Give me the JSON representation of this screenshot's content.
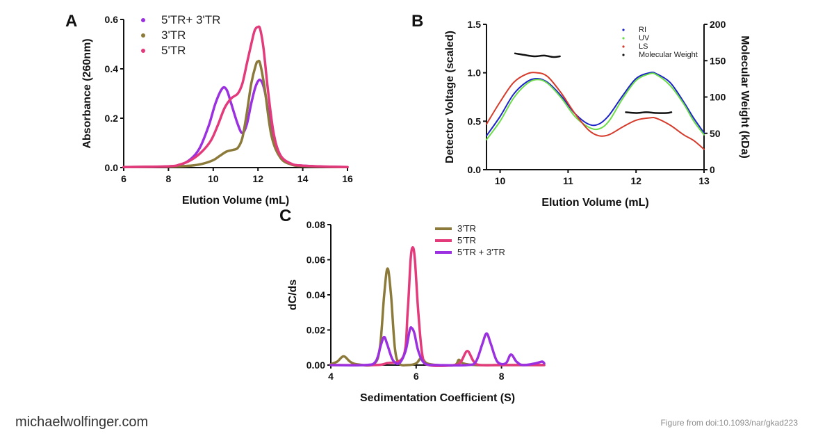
{
  "footer": {
    "site": "michaelwolfinger.com",
    "credit": "Figure from doi:10.1093/nar/gkad223"
  },
  "chart_data": [
    {
      "panel": "A",
      "type": "line",
      "xlabel": "Elution Volume (mL)",
      "ylabel": "Absorbance (260nm)",
      "xlim": [
        6,
        16
      ],
      "ylim": [
        0,
        0.6
      ],
      "xticks": [
        6,
        8,
        10,
        12,
        14,
        16
      ],
      "xtick_labels": [
        "6",
        "8",
        "10",
        "12",
        "14",
        "16"
      ],
      "yticks": [
        0,
        0.2,
        0.4,
        0.6
      ],
      "ytick_labels": [
        "0.0",
        "0.2",
        "0.4",
        "0.6"
      ],
      "legend_position": "top-left",
      "series": [
        {
          "name": "5'TR+ 3'TR",
          "color": "#9b30e0",
          "x": [
            6,
            7,
            8,
            8.5,
            9,
            9.4,
            9.8,
            10.1,
            10.4,
            10.6,
            10.8,
            11.1,
            11.3,
            11.5,
            11.7,
            11.9,
            12.1,
            12.3,
            12.6,
            13,
            13.5,
            14,
            15,
            16
          ],
          "y": [
            0.002,
            0.003,
            0.005,
            0.01,
            0.035,
            0.08,
            0.17,
            0.26,
            0.32,
            0.315,
            0.26,
            0.175,
            0.14,
            0.175,
            0.26,
            0.33,
            0.355,
            0.31,
            0.16,
            0.05,
            0.015,
            0.008,
            0.004,
            0.002
          ]
        },
        {
          "name": "3'TR",
          "color": "#8b7a3a",
          "x": [
            6,
            8,
            9,
            9.5,
            10,
            10.3,
            10.6,
            10.9,
            11.1,
            11.3,
            11.5,
            11.7,
            11.9,
            12,
            12.1,
            12.3,
            12.6,
            13,
            13.5,
            14,
            15,
            16
          ],
          "y": [
            0.002,
            0.004,
            0.008,
            0.015,
            0.03,
            0.048,
            0.065,
            0.072,
            0.08,
            0.12,
            0.22,
            0.34,
            0.415,
            0.43,
            0.42,
            0.32,
            0.13,
            0.04,
            0.012,
            0.006,
            0.003,
            0.002
          ]
        },
        {
          "name": "5'TR",
          "color": "#e23a7a",
          "x": [
            6,
            8,
            8.5,
            9,
            9.5,
            9.9,
            10.2,
            10.5,
            10.8,
            11.1,
            11.3,
            11.5,
            11.7,
            11.85,
            12,
            12.1,
            12.25,
            12.45,
            12.7,
            13,
            13.5,
            14,
            15,
            16
          ],
          "y": [
            0.002,
            0.005,
            0.012,
            0.03,
            0.065,
            0.11,
            0.17,
            0.24,
            0.28,
            0.3,
            0.34,
            0.42,
            0.5,
            0.555,
            0.57,
            0.56,
            0.48,
            0.31,
            0.14,
            0.05,
            0.015,
            0.008,
            0.004,
            0.002
          ]
        }
      ]
    },
    {
      "panel": "B",
      "type": "line",
      "xlabel": "Elution Volume (mL)",
      "ylabel": "Detector Voltage (scaled)",
      "y2label": "Molecular Weight (kDa)",
      "xlim": [
        9.8,
        13
      ],
      "ylim": [
        0,
        1.5
      ],
      "y2lim": [
        0,
        200
      ],
      "xticks": [
        10,
        11,
        12,
        13
      ],
      "xtick_labels": [
        "10",
        "11",
        "12",
        "13"
      ],
      "yticks": [
        0,
        0.5,
        1.0,
        1.5
      ],
      "ytick_labels": [
        "0.0",
        "0.5",
        "1.0",
        "1.5"
      ],
      "y2ticks": [
        0,
        50,
        100,
        150,
        200
      ],
      "y2tick_labels": [
        "0",
        "50",
        "100",
        "150",
        "200"
      ],
      "legend_position": "top-right",
      "series": [
        {
          "name": "RI",
          "color": "#1a22c8",
          "x": [
            9.8,
            10,
            10.2,
            10.4,
            10.55,
            10.7,
            10.9,
            11.1,
            11.3,
            11.45,
            11.6,
            11.8,
            12,
            12.2,
            12.3,
            12.5,
            12.7,
            12.85,
            13
          ],
          "y": [
            0.35,
            0.55,
            0.78,
            0.91,
            0.94,
            0.9,
            0.76,
            0.58,
            0.47,
            0.47,
            0.56,
            0.76,
            0.94,
            1.0,
            0.99,
            0.9,
            0.7,
            0.53,
            0.38
          ]
        },
        {
          "name": "UV",
          "color": "#6ddc4a",
          "x": [
            9.8,
            10,
            10.2,
            10.4,
            10.55,
            10.7,
            10.9,
            11.1,
            11.3,
            11.45,
            11.6,
            11.8,
            12,
            12.2,
            12.3,
            12.5,
            12.7,
            12.85,
            13
          ],
          "y": [
            0.31,
            0.5,
            0.74,
            0.89,
            0.93,
            0.89,
            0.74,
            0.55,
            0.44,
            0.42,
            0.5,
            0.73,
            0.92,
            0.99,
            0.98,
            0.87,
            0.68,
            0.5,
            0.36
          ]
        },
        {
          "name": "LS",
          "color": "#d53a2a",
          "x": [
            9.8,
            10,
            10.2,
            10.4,
            10.55,
            10.7,
            10.9,
            11.1,
            11.3,
            11.45,
            11.6,
            11.8,
            12,
            12.2,
            12.3,
            12.5,
            12.7,
            12.85,
            13
          ],
          "y": [
            0.47,
            0.7,
            0.9,
            0.99,
            1.0,
            0.96,
            0.79,
            0.58,
            0.41,
            0.35,
            0.36,
            0.44,
            0.51,
            0.535,
            0.53,
            0.46,
            0.36,
            0.3,
            0.21
          ]
        },
        {
          "name": "Molecular Weight",
          "color": "#111111",
          "segments": [
            {
              "x": [
                10.22,
                10.35,
                10.5,
                10.65,
                10.78,
                10.88
              ],
              "y": [
                160,
                158,
                156,
                157,
                155,
                156
              ]
            },
            {
              "x": [
                11.85,
                12.0,
                12.15,
                12.3,
                12.45,
                12.52
              ],
              "y": [
                79,
                78,
                79,
                78,
                78,
                79
              ]
            }
          ]
        }
      ]
    },
    {
      "panel": "C",
      "type": "line",
      "xlabel": "Sedimentation Coefficient (S)",
      "ylabel": "dC/ds",
      "xlim": [
        4,
        9
      ],
      "ylim": [
        0,
        0.08
      ],
      "xticks": [
        4,
        6,
        8
      ],
      "xtick_labels": [
        "4",
        "6",
        "8"
      ],
      "yticks": [
        0,
        0.02,
        0.04,
        0.06,
        0.08
      ],
      "ytick_labels": [
        "0.00",
        "0.02",
        "0.04",
        "0.06",
        "0.08"
      ],
      "legend_position": "top-right",
      "series": [
        {
          "name": "3'TR",
          "color": "#8b7a3a",
          "x": [
            4,
            4.15,
            4.3,
            4.45,
            4.6,
            5.0,
            5.15,
            5.25,
            5.33,
            5.41,
            5.5,
            5.6,
            5.8,
            6.0,
            6.12,
            6.25,
            6.5,
            6.9,
            7.0,
            7.1,
            7.4,
            8,
            9
          ],
          "y": [
            0.0005,
            0.002,
            0.005,
            0.002,
            0.0005,
            0.0005,
            0.01,
            0.04,
            0.055,
            0.04,
            0.01,
            0.001,
            0.0,
            0.001,
            0.004,
            0.001,
            0.0,
            0.0,
            0.003,
            0.001,
            0.0,
            0.0,
            0.0
          ]
        },
        {
          "name": "5'TR",
          "color": "#e23a7a",
          "x": [
            4,
            5.0,
            5.3,
            5.7,
            5.8,
            5.87,
            5.92,
            5.97,
            6.05,
            6.15,
            6.3,
            6.9,
            7.05,
            7.2,
            7.35,
            7.5,
            8,
            9
          ],
          "y": [
            0.0,
            0.0,
            0.001,
            0.005,
            0.03,
            0.06,
            0.067,
            0.06,
            0.03,
            0.005,
            0.0,
            0.0,
            0.002,
            0.008,
            0.002,
            0.0,
            0.0,
            0.0
          ]
        },
        {
          "name": "5'TR + 3'TR",
          "color": "#9b30e0",
          "x": [
            4,
            4.8,
            5.05,
            5.18,
            5.25,
            5.32,
            5.45,
            5.6,
            5.75,
            5.85,
            5.9,
            5.96,
            6.05,
            6.2,
            6.5,
            7.2,
            7.4,
            7.55,
            7.65,
            7.75,
            7.9,
            8.1,
            8.22,
            8.35,
            8.5,
            8.8,
            8.95,
            9
          ],
          "y": [
            0.0,
            0.0,
            0.002,
            0.012,
            0.016,
            0.012,
            0.003,
            0.001,
            0.008,
            0.02,
            0.021,
            0.018,
            0.008,
            0.001,
            0.0,
            0.0,
            0.002,
            0.012,
            0.018,
            0.012,
            0.002,
            0.001,
            0.006,
            0.002,
            0.0,
            0.001,
            0.002,
            0.001
          ]
        }
      ]
    }
  ]
}
